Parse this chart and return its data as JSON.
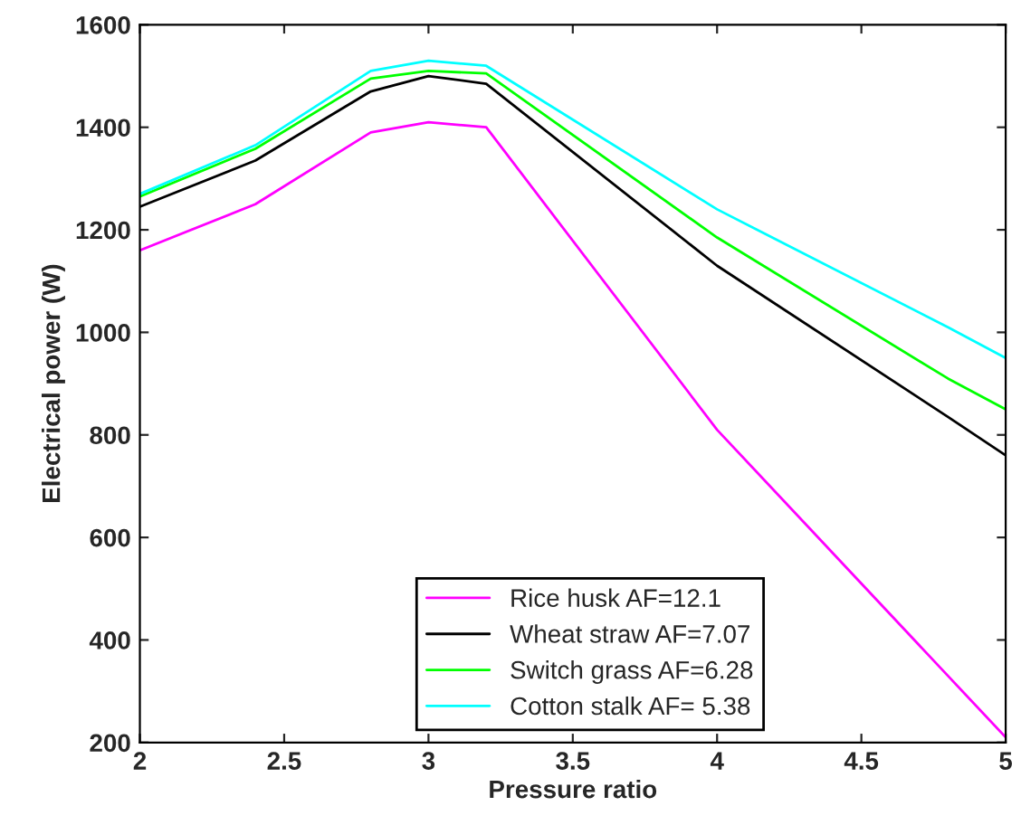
{
  "chart_data": {
    "type": "line",
    "xlabel": "Pressure ratio",
    "ylabel": "Electrical power (W)",
    "x": [
      2,
      2.4,
      2.8,
      3.0,
      3.2,
      4.0,
      4.8,
      5
    ],
    "series": [
      {
        "name": "Rice husk AF=12.1",
        "color": "#ff00ff",
        "values": [
          1160,
          1250,
          1390,
          1410,
          1400,
          810,
          330,
          210
        ]
      },
      {
        "name": "Wheat straw AF=7.07",
        "color": "#000000",
        "values": [
          1245,
          1335,
          1470,
          1500,
          1485,
          1130,
          835,
          760
        ]
      },
      {
        "name": "Switch grass AF=6.28",
        "color": "#00ff00",
        "values": [
          1265,
          1358,
          1495,
          1510,
          1505,
          1185,
          910,
          850
        ]
      },
      {
        "name": "Cotton stalk AF= 5.38",
        "color": "#00ffff",
        "values": [
          1270,
          1365,
          1510,
          1530,
          1520,
          1240,
          1010,
          950
        ]
      }
    ],
    "xlim": [
      2,
      5
    ],
    "ylim": [
      200,
      1600
    ],
    "xticks": [
      2,
      2.5,
      3,
      3.5,
      4,
      4.5,
      5
    ],
    "yticks": [
      200,
      400,
      600,
      800,
      1000,
      1200,
      1400,
      1600
    ],
    "grid": false,
    "legend": "bottom"
  }
}
